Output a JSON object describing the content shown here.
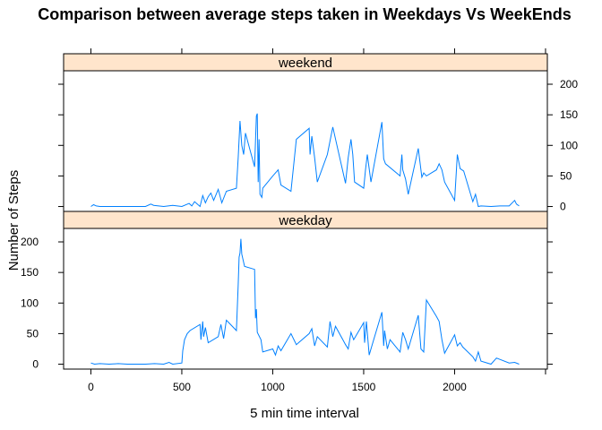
{
  "chart_data": {
    "type": "line",
    "title": "Comparison between average steps taken in Weekdays Vs WeekEnds",
    "xlabel": "5 min time interval",
    "ylabel": "Number of Steps",
    "xlim": [
      -150,
      2510
    ],
    "x_ticks": [
      0,
      500,
      1000,
      1500,
      2000
    ],
    "y_ticks": [
      0,
      50,
      100,
      150,
      200
    ],
    "line_color": "#0080ff",
    "strip_color": "#ffe5cc",
    "panels": [
      {
        "name": "weekend",
        "ylim": [
          -8,
          222
        ],
        "series": {
          "x": [
            0,
            15,
            30,
            50,
            75,
            100,
            150,
            200,
            250,
            300,
            330,
            345,
            400,
            450,
            500,
            540,
            555,
            570,
            600,
            615,
            630,
            645,
            660,
            675,
            700,
            720,
            745,
            800,
            810,
            820,
            830,
            840,
            850,
            900,
            910,
            915,
            920,
            925,
            930,
            940,
            945,
            1000,
            1030,
            1045,
            1100,
            1130,
            1200,
            1205,
            1215,
            1230,
            1245,
            1300,
            1330,
            1400,
            1415,
            1430,
            1440,
            1450,
            1500,
            1510,
            1520,
            1540,
            1600,
            1610,
            1620,
            1700,
            1710,
            1715,
            1730,
            1745,
            1800,
            1820,
            1830,
            1845,
            1900,
            1915,
            1930,
            1945,
            2000,
            2015,
            2030,
            2050,
            2100,
            2115,
            2130,
            2145,
            2200,
            2250,
            2300,
            2330,
            2340,
            2355
          ],
          "y": [
            0,
            3,
            1,
            0,
            0,
            0,
            0,
            0,
            0,
            0,
            4,
            2,
            0,
            2,
            0,
            5,
            1,
            8,
            0,
            18,
            6,
            16,
            22,
            10,
            28,
            6,
            25,
            30,
            80,
            140,
            100,
            85,
            120,
            65,
            148,
            152,
            40,
            110,
            20,
            15,
            30,
            50,
            60,
            35,
            25,
            110,
            128,
            85,
            115,
            80,
            40,
            85,
            130,
            38,
            80,
            110,
            85,
            40,
            30,
            60,
            85,
            40,
            138,
            78,
            70,
            50,
            85,
            60,
            45,
            20,
            95,
            48,
            55,
            50,
            60,
            70,
            60,
            40,
            10,
            85,
            62,
            58,
            8,
            20,
            0,
            1,
            0,
            1,
            1,
            10,
            4,
            1
          ]
        }
      },
      {
        "name": "weekday",
        "ylim": [
          -8,
          222
        ],
        "series": {
          "x": [
            0,
            20,
            50,
            100,
            150,
            200,
            250,
            300,
            350,
            400,
            430,
            450,
            500,
            505,
            515,
            530,
            545,
            600,
            605,
            615,
            620,
            630,
            645,
            700,
            715,
            730,
            745,
            800,
            810,
            815,
            820,
            825,
            830,
            845,
            900,
            905,
            910,
            915,
            935,
            945,
            1000,
            1015,
            1030,
            1045,
            1100,
            1130,
            1200,
            1215,
            1230,
            1245,
            1300,
            1315,
            1330,
            1345,
            1400,
            1415,
            1430,
            1445,
            1500,
            1505,
            1515,
            1530,
            1545,
            1600,
            1610,
            1615,
            1630,
            1645,
            1700,
            1715,
            1730,
            1745,
            1800,
            1815,
            1830,
            1845,
            1900,
            1915,
            1930,
            1945,
            2000,
            2015,
            2030,
            2045,
            2100,
            2115,
            2130,
            2145,
            2200,
            2230,
            2300,
            2330,
            2355
          ],
          "y": [
            2,
            0,
            1,
            0,
            1,
            0,
            0,
            0,
            1,
            0,
            3,
            0,
            2,
            22,
            40,
            50,
            55,
            65,
            40,
            70,
            45,
            60,
            35,
            45,
            65,
            42,
            72,
            55,
            130,
            175,
            182,
            205,
            180,
            160,
            155,
            75,
            90,
            52,
            40,
            20,
            25,
            15,
            30,
            22,
            50,
            32,
            50,
            58,
            30,
            45,
            28,
            70,
            45,
            62,
            32,
            25,
            52,
            40,
            68,
            35,
            70,
            15,
            30,
            85,
            30,
            55,
            25,
            40,
            20,
            52,
            40,
            25,
            80,
            25,
            20,
            105,
            78,
            70,
            40,
            18,
            48,
            30,
            35,
            28,
            12,
            5,
            20,
            5,
            0,
            10,
            2,
            3,
            0
          ]
        }
      }
    ]
  }
}
